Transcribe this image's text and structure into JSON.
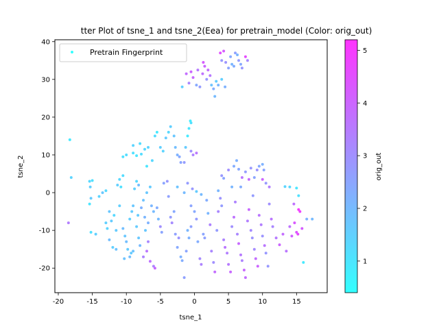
{
  "chart_data": {
    "type": "scatter",
    "title": "tter Plot of tsne_1 and tsne_2(Eea) for pretrain_model (Color: orig_out)",
    "xlabel": "tsne_1",
    "ylabel": "tsne_2",
    "xlim": [
      -20.5,
      19.5
    ],
    "ylim": [
      -26.5,
      40.5
    ],
    "xticks": [
      -20,
      -15,
      -10,
      -5,
      0,
      5,
      10,
      15
    ],
    "yticks": [
      -20,
      -10,
      0,
      10,
      20,
      30,
      40
    ],
    "grid": false,
    "legend": {
      "placement": "top-left",
      "entries": [
        "Pretrain Fingerprint"
      ]
    },
    "colorbar": {
      "label": "orig_out",
      "range": [
        0.4,
        5.2
      ],
      "ticks": [
        1,
        2,
        3,
        4,
        5
      ],
      "colormap": "cool",
      "color_low": "#33ffff",
      "color_high": "#ff33ff"
    },
    "series": [
      {
        "name": "Pretrain Fingerprint",
        "points": [
          [
            -18.3,
            14.0,
            0.9
          ],
          [
            -18.1,
            4.0,
            1.4
          ],
          [
            -18.5,
            -8.0,
            3.4
          ],
          [
            -15.4,
            3.0,
            1.3
          ],
          [
            -15.0,
            3.2,
            1.1
          ],
          [
            -15.3,
            1.5,
            1.5
          ],
          [
            -15.4,
            -3.0,
            1.0
          ],
          [
            -15.2,
            -1.5,
            1.6
          ],
          [
            -15.2,
            -10.5,
            1.1
          ],
          [
            -14.5,
            -11.0,
            1.5
          ],
          [
            -14.0,
            -1.0,
            1.4
          ],
          [
            -13.5,
            0.0,
            1.7
          ],
          [
            -13.0,
            0.5,
            1.3
          ],
          [
            -12.5,
            -5.0,
            1.7
          ],
          [
            -13.0,
            -8.0,
            1.5
          ],
          [
            -12.8,
            -9.5,
            1.4
          ],
          [
            -12.2,
            -7.5,
            1.6
          ],
          [
            -12.5,
            -12.5,
            1.9
          ],
          [
            -12.0,
            -14.5,
            1.5
          ],
          [
            -11.5,
            -15.0,
            1.8
          ],
          [
            -11.8,
            -6.0,
            1.3
          ],
          [
            -11.5,
            -10.0,
            1.6
          ],
          [
            -11.3,
            2.0,
            1.5
          ],
          [
            -11.0,
            3.5,
            1.3
          ],
          [
            -10.8,
            1.5,
            1.1
          ],
          [
            -10.5,
            4.5,
            1.2
          ],
          [
            -11.0,
            -3.5,
            1.5
          ],
          [
            -10.5,
            -9.5,
            1.9
          ],
          [
            -10.2,
            -11.5,
            1.7
          ],
          [
            -10.0,
            -13.0,
            1.9
          ],
          [
            -10.3,
            -17.5,
            1.8
          ],
          [
            -9.8,
            -15.0,
            1.6
          ],
          [
            -9.5,
            -17.0,
            1.9
          ],
          [
            -9.3,
            -16.0,
            1.6
          ],
          [
            -9.0,
            -15.5,
            1.8
          ],
          [
            -9.5,
            -7.0,
            1.5
          ],
          [
            -9.2,
            -5.0,
            1.6
          ],
          [
            -9.0,
            -3.5,
            1.7
          ],
          [
            -8.8,
            1.0,
            1.5
          ],
          [
            -8.5,
            3.0,
            1.3
          ],
          [
            -8.2,
            2.0,
            1.9
          ],
          [
            -8.5,
            -9.0,
            1.6
          ],
          [
            -8.2,
            -12.0,
            1.7
          ],
          [
            -8.0,
            -14.0,
            2.0
          ],
          [
            -8.3,
            -6.0,
            1.6
          ],
          [
            -7.8,
            -4.0,
            2.2
          ],
          [
            -7.5,
            -2.0,
            1.8
          ],
          [
            -7.3,
            -6.5,
            2.1
          ],
          [
            -7.5,
            -17.0,
            3.3
          ],
          [
            -7.0,
            -15.5,
            3.6
          ],
          [
            -6.8,
            -13.0,
            3.2
          ],
          [
            -7.2,
            -10.0,
            1.7
          ],
          [
            -6.8,
            -8.0,
            2.2
          ],
          [
            -7.0,
            0.0,
            1.7
          ],
          [
            -6.5,
            1.5,
            1.6
          ],
          [
            -6.3,
            -3.5,
            2.1
          ],
          [
            -6.0,
            -5.0,
            2.0
          ],
          [
            -6.5,
            -18.2,
            3.7
          ],
          [
            -6.0,
            -19.5,
            3.3
          ],
          [
            -5.8,
            -20.0,
            3.9
          ],
          [
            -5.5,
            -4.0,
            2.3
          ],
          [
            -5.3,
            -7.0,
            2.0
          ],
          [
            -5.0,
            -9.0,
            3.0
          ],
          [
            -4.8,
            -10.5,
            2.5
          ],
          [
            -4.5,
            2.5,
            2.5
          ],
          [
            -4.0,
            3.0,
            2.8
          ],
          [
            -3.8,
            -1.0,
            2.6
          ],
          [
            -3.5,
            -6.5,
            2.7
          ],
          [
            -3.3,
            -8.0,
            3.1
          ],
          [
            -3.0,
            -5.0,
            2.4
          ],
          [
            -2.8,
            -11.0,
            2.6
          ],
          [
            -2.5,
            -14.5,
            2.4
          ],
          [
            -2.3,
            -12.0,
            2.9
          ],
          [
            -2.0,
            -17.0,
            2.2
          ],
          [
            -1.8,
            -18.0,
            2.3
          ],
          [
            -1.5,
            -22.5,
            2.6
          ],
          [
            -1.2,
            -15.5,
            2.5
          ],
          [
            -1.0,
            -10.0,
            2.1
          ],
          [
            -0.8,
            -12.0,
            2.2
          ],
          [
            -0.5,
            -9.0,
            2.6
          ],
          [
            -0.3,
            1.0,
            2.8
          ],
          [
            -0.5,
            -3.5,
            2.5
          ],
          [
            -1.0,
            2.5,
            2.7
          ],
          [
            0.0,
            -5.0,
            2.4
          ],
          [
            0.3,
            -7.0,
            2.7
          ],
          [
            0.5,
            -13.0,
            2.3
          ],
          [
            0.8,
            -17.5,
            3.1
          ],
          [
            1.0,
            -19.0,
            3.3
          ],
          [
            1.3,
            -11.0,
            2.5
          ],
          [
            1.5,
            -12.0,
            2.6
          ],
          [
            1.8,
            -2.0,
            2.3
          ],
          [
            2.0,
            -5.5,
            2.1
          ],
          [
            2.3,
            -8.5,
            3.3
          ],
          [
            2.5,
            -15.5,
            3.2
          ],
          [
            2.8,
            -18.5,
            3.0
          ],
          [
            3.0,
            -21.0,
            3.8
          ],
          [
            3.3,
            -10.0,
            2.7
          ],
          [
            3.5,
            -5.0,
            3.2
          ],
          [
            3.8,
            -1.5,
            2.9
          ],
          [
            4.0,
            -3.5,
            2.7
          ],
          [
            4.3,
            -12.5,
            3.3
          ],
          [
            4.5,
            -14.5,
            3.6
          ],
          [
            4.8,
            -16.0,
            3.4
          ],
          [
            5.0,
            -19.0,
            3.5
          ],
          [
            5.3,
            -21.0,
            3.9
          ],
          [
            5.5,
            -9.0,
            3.0
          ],
          [
            5.8,
            -6.5,
            3.7
          ],
          [
            6.0,
            -2.5,
            3.3
          ],
          [
            6.3,
            -11.0,
            3.2
          ],
          [
            6.5,
            -13.5,
            3.9
          ],
          [
            6.8,
            -16.5,
            3.5
          ],
          [
            7.0,
            -18.0,
            3.3
          ],
          [
            7.3,
            -20.5,
            3.9
          ],
          [
            7.5,
            -22.5,
            3.8
          ],
          [
            7.8,
            -7.5,
            3.4
          ],
          [
            8.0,
            -4.5,
            3.9
          ],
          [
            8.3,
            -10.0,
            3.1
          ],
          [
            8.5,
            -12.0,
            2.9
          ],
          [
            8.8,
            -15.0,
            3.1
          ],
          [
            9.0,
            -17.5,
            3.8
          ],
          [
            9.3,
            -19.5,
            4.0
          ],
          [
            9.5,
            -6.0,
            3.6
          ],
          [
            9.8,
            -8.5,
            3.4
          ],
          [
            10.0,
            -11.5,
            2.9
          ],
          [
            10.3,
            -14.0,
            3.6
          ],
          [
            10.5,
            -16.0,
            2.8
          ],
          [
            10.8,
            -19.5,
            2.8
          ],
          [
            11.0,
            -3.0,
            3.0
          ],
          [
            11.3,
            -7.0,
            3.6
          ],
          [
            11.5,
            -9.0,
            3.2
          ],
          [
            12.0,
            -12.0,
            3.5
          ],
          [
            12.5,
            -13.8,
            4.0
          ],
          [
            13.0,
            -11.0,
            3.8
          ],
          [
            13.5,
            -15.5,
            3.6
          ],
          [
            14.0,
            -9.0,
            3.7
          ],
          [
            14.3,
            -11.5,
            4.1
          ],
          [
            14.7,
            -8.0,
            4.3
          ],
          [
            15.0,
            -10.5,
            4.4
          ],
          [
            15.3,
            -4.5,
            5.0
          ],
          [
            15.5,
            -5.0,
            4.8
          ],
          [
            15.2,
            -11.0,
            4.6
          ],
          [
            15.8,
            -9.5,
            4.2
          ],
          [
            16.0,
            -18.5,
            0.9
          ],
          [
            16.5,
            -7.0,
            2.2
          ],
          [
            17.3,
            -7.0,
            2.0
          ],
          [
            14.0,
            1.5,
            1.3
          ],
          [
            13.3,
            1.6,
            1.4
          ],
          [
            15.0,
            1.2,
            1.0
          ],
          [
            15.3,
            -0.8,
            1.1
          ],
          [
            14.6,
            -3.0,
            3.7
          ],
          [
            4.0,
            4.5,
            2.8
          ],
          [
            4.3,
            3.8,
            2.5
          ],
          [
            5.0,
            6.0,
            3.0
          ],
          [
            5.8,
            7.0,
            2.3
          ],
          [
            6.2,
            8.5,
            2.2
          ],
          [
            6.5,
            6.2,
            2.4
          ],
          [
            7.0,
            4.0,
            3.6
          ],
          [
            7.5,
            5.5,
            2.7
          ],
          [
            8.0,
            3.5,
            3.9
          ],
          [
            8.3,
            6.5,
            2.8
          ],
          [
            8.8,
            4.0,
            2.5
          ],
          [
            9.2,
            6.0,
            2.9
          ],
          [
            9.5,
            7.0,
            2.4
          ],
          [
            10.0,
            7.5,
            2.2
          ],
          [
            10.2,
            6.0,
            2.5
          ],
          [
            10.5,
            2.5,
            2.8
          ],
          [
            11.0,
            1.5,
            3.4
          ],
          [
            10.0,
            3.5,
            4.0
          ],
          [
            8.6,
            -0.8,
            2.7
          ],
          [
            6.8,
            1.5,
            2.3
          ],
          [
            5.5,
            1.5,
            2.1
          ],
          [
            3.5,
            0.5,
            2.1
          ],
          [
            1.0,
            -0.5,
            2.0
          ],
          [
            0.3,
            0.3,
            1.6
          ],
          [
            -1.5,
            0.0,
            2.0
          ],
          [
            -2.5,
            1.5,
            1.8
          ],
          [
            -10.5,
            9.5,
            1.1
          ],
          [
            -10.0,
            10.0,
            1.2
          ],
          [
            -9.0,
            10.5,
            1.1
          ],
          [
            -8.5,
            9.8,
            1.0
          ],
          [
            -7.8,
            10.2,
            1.2
          ],
          [
            -7.3,
            11.5,
            1.3
          ],
          [
            -7.0,
            7.0,
            1.0
          ],
          [
            -6.8,
            12.0,
            1.4
          ],
          [
            -6.2,
            8.5,
            1.3
          ],
          [
            -5.8,
            15.0,
            1.2
          ],
          [
            -5.5,
            16.0,
            0.9
          ],
          [
            -5.0,
            12.0,
            1.5
          ],
          [
            -4.6,
            11.0,
            1.4
          ],
          [
            -4.2,
            14.5,
            1.6
          ],
          [
            -3.8,
            16.0,
            1.3
          ],
          [
            -3.5,
            17.5,
            1.5
          ],
          [
            -3.0,
            15.0,
            1.7
          ],
          [
            -2.8,
            12.0,
            1.9
          ],
          [
            -2.5,
            10.0,
            2.2
          ],
          [
            -2.2,
            9.5,
            2.4
          ],
          [
            -2.0,
            8.0,
            2.5
          ],
          [
            -1.5,
            8.0,
            2.7
          ],
          [
            -1.3,
            12.0,
            1.6
          ],
          [
            -1.0,
            15.0,
            0.9
          ],
          [
            -0.8,
            17.0,
            1.0
          ],
          [
            -0.6,
            19.0,
            0.8
          ],
          [
            -0.5,
            18.5,
            1.1
          ],
          [
            -0.2,
            10.0,
            3.3
          ],
          [
            0.3,
            10.5,
            3.6
          ],
          [
            -0.5,
            11.0,
            3.0
          ],
          [
            -8.0,
            13.0,
            1.2
          ],
          [
            -9.0,
            12.5,
            1.4
          ],
          [
            -1.2,
            31.5,
            3.8
          ],
          [
            -0.8,
            29.0,
            3.2
          ],
          [
            -0.5,
            32.0,
            4.0
          ],
          [
            -0.2,
            30.5,
            3.9
          ],
          [
            0.3,
            28.5,
            2.4
          ],
          [
            0.5,
            32.5,
            3.5
          ],
          [
            0.8,
            28.0,
            2.7
          ],
          [
            1.2,
            31.5,
            3.7
          ],
          [
            1.3,
            34.5,
            4.2
          ],
          [
            1.5,
            33.5,
            4.0
          ],
          [
            2.0,
            32.5,
            3.8
          ],
          [
            2.3,
            31.0,
            3.5
          ],
          [
            2.5,
            28.5,
            1.8
          ],
          [
            2.8,
            27.5,
            2.3
          ],
          [
            3.0,
            25.5,
            2.0
          ],
          [
            3.2,
            29.5,
            1.6
          ],
          [
            3.5,
            28.5,
            2.1
          ],
          [
            4.0,
            30.0,
            1.5
          ],
          [
            4.5,
            28.0,
            2.2
          ],
          [
            3.8,
            37.0,
            4.5
          ],
          [
            4.0,
            35.0,
            2.8
          ],
          [
            4.3,
            37.5,
            4.2
          ],
          [
            4.6,
            34.5,
            2.9
          ],
          [
            5.0,
            33.0,
            2.5
          ],
          [
            5.3,
            36.0,
            2.4
          ],
          [
            5.5,
            34.0,
            2.1
          ],
          [
            5.8,
            33.5,
            2.3
          ],
          [
            6.0,
            37.0,
            2.6
          ],
          [
            6.3,
            36.5,
            2.1
          ],
          [
            6.5,
            35.0,
            2.7
          ],
          [
            6.8,
            34.0,
            2.4
          ],
          [
            7.0,
            33.0,
            2.8
          ],
          [
            7.5,
            36.0,
            4.6
          ],
          [
            7.8,
            35.0,
            3.1
          ],
          [
            -1.8,
            28.0,
            1.5
          ],
          [
            1.8,
            30.0,
            2.8
          ]
        ]
      }
    ]
  }
}
